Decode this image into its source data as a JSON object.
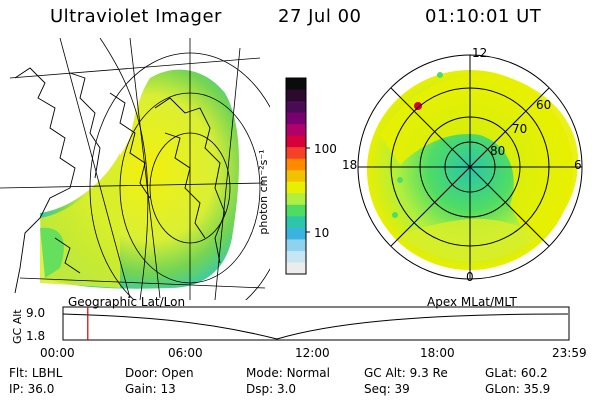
{
  "header": {
    "instrument": "Ultraviolet Imager",
    "date": "27 Jul 00",
    "time": "01:10:01 UT"
  },
  "left_panel": {
    "caption": "Geographic Lat/Lon"
  },
  "right_panel": {
    "caption": "Apex MLat/MLT",
    "mlt_labels": [
      "12",
      "18",
      "6",
      "0"
    ],
    "mlat_labels": [
      "60",
      "70",
      "80"
    ]
  },
  "colorbar": {
    "unit_label": "photon cm⁻²s⁻¹",
    "ticks": [
      "100",
      "10"
    ],
    "colors": [
      "#0b0b0b",
      "#2b0a2b",
      "#4a0a56",
      "#7a0070",
      "#b0006a",
      "#d8003a",
      "#f5402a",
      "#ff8a00",
      "#f2c200",
      "#e8ef00",
      "#aeef40",
      "#4fdc65",
      "#2cc6a8",
      "#3ab3e0",
      "#8fd2ef",
      "#c7e6f3",
      "#ececec"
    ]
  },
  "altitude_plot": {
    "ylabel": "GC Alt",
    "yticks": [
      "9.0",
      "1.8"
    ],
    "xticks": [
      "00:00",
      "06:00",
      "12:00",
      "18:00",
      "23:59"
    ],
    "current_time_fraction": 0.049
  },
  "status": {
    "row1": [
      {
        "label": "Flt:",
        "value": "LBHL"
      },
      {
        "label": "Door:",
        "value": "Open"
      },
      {
        "label": "Mode:",
        "value": "Normal"
      },
      {
        "label": "GC Alt:",
        "value": "9.3 Re"
      },
      {
        "label": "GLat:",
        "value": "60.2"
      }
    ],
    "row2": [
      {
        "label": "IP:",
        "value": "36.0"
      },
      {
        "label": "Gain:",
        "value": "13"
      },
      {
        "label": "Dsp:",
        "value": "3.0"
      },
      {
        "label": "Seq:",
        "value": "39"
      },
      {
        "label": "GLon:",
        "value": "35.9"
      }
    ]
  },
  "colors": {
    "accent_red": "#cc0000",
    "aurora_yellow": "#e8ef00",
    "aurora_green": "#6bd24b",
    "aurora_cyan": "#2cc6a8"
  }
}
